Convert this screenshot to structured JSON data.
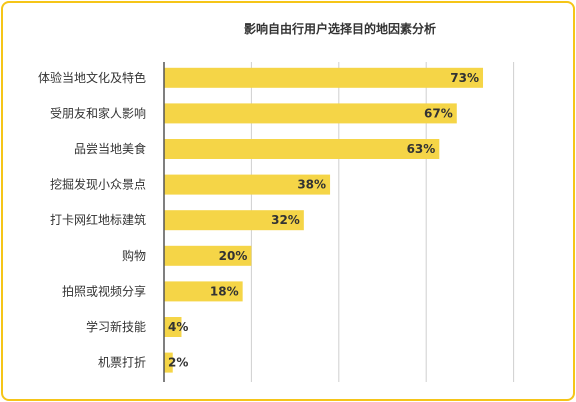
{
  "chart_data": {
    "type": "bar",
    "orientation": "horizontal",
    "title": "影响自由行用户选择目的地因素分析",
    "categories": [
      "体验当地文化及特色",
      "受朋友和家人影响",
      "品尝当地美食",
      "挖掘发现小众景点",
      "打卡网红地标建筑",
      "购物",
      "拍照或视频分享",
      "学习新技能",
      "机票打折"
    ],
    "values": [
      73,
      67,
      63,
      38,
      32,
      20,
      18,
      4,
      2
    ],
    "value_labels": [
      "73%",
      "67%",
      "63%",
      "38%",
      "32%",
      "20%",
      "18%",
      "4%",
      "2%"
    ],
    "xlim": [
      0,
      80
    ],
    "grid": true,
    "legend": "none",
    "colors": {
      "bar": "#f5d547",
      "axis": "#555555",
      "grid": "#cfcfcf",
      "border": "#f5c518"
    }
  }
}
